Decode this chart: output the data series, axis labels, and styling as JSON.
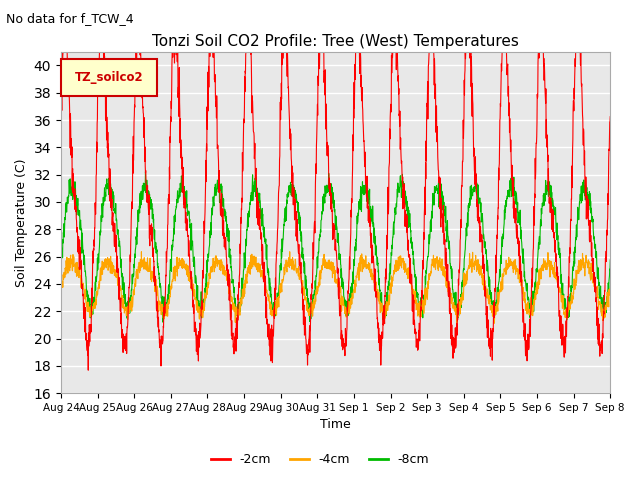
{
  "title": "Tonzi Soil CO2 Profile: Tree (West) Temperatures",
  "subtitle": "No data for f_TCW_4",
  "xlabel": "Time",
  "ylabel": "Soil Temperature (C)",
  "ylim": [
    16,
    41
  ],
  "yticks": [
    16,
    18,
    20,
    22,
    24,
    26,
    28,
    30,
    32,
    34,
    36,
    38,
    40
  ],
  "line_colors": {
    "-2cm": "#ff0000",
    "-4cm": "#ffa500",
    "-8cm": "#00bb00"
  },
  "legend_label": "TZ_soilco2",
  "x_tick_labels": [
    "Aug 24",
    "Aug 25",
    "Aug 26",
    "Aug 27",
    "Aug 28",
    "Aug 29",
    "Aug 30",
    "Aug 31",
    "Sep 1",
    "Sep 2",
    "Sep 3",
    "Sep 4",
    "Sep 5",
    "Sep 6",
    "Sep 7",
    "Sep 8"
  ],
  "background_color": "#ffffff",
  "plot_bg_color": "#e8e8e8"
}
